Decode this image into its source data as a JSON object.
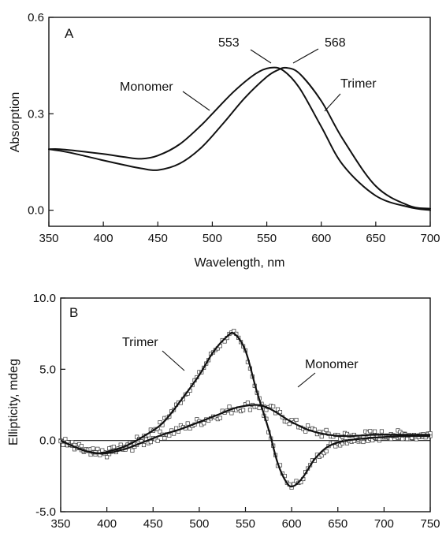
{
  "chart_data": [
    {
      "panel_label": "A",
      "type": "line",
      "xlabel": "Wavelength, nm",
      "ylabel": "Absorption",
      "xlim": [
        350,
        700
      ],
      "ylim": [
        -0.05,
        0.6
      ],
      "xticks": [
        350,
        400,
        450,
        500,
        550,
        600,
        650,
        700
      ],
      "yticks": [
        0.0,
        0.3,
        0.6
      ],
      "ytick_labels": [
        "0.0",
        "0.3",
        "0.6"
      ],
      "series": [
        {
          "name": "Monomer",
          "x": [
            350,
            360,
            375,
            400,
            420,
            435,
            450,
            470,
            490,
            500,
            520,
            540,
            553,
            565,
            580,
            600,
            620,
            650,
            680,
            700
          ],
          "y": [
            0.19,
            0.19,
            0.185,
            0.175,
            0.165,
            0.16,
            0.17,
            0.205,
            0.265,
            0.3,
            0.37,
            0.425,
            0.443,
            0.435,
            0.38,
            0.26,
            0.14,
            0.045,
            0.01,
            0.0
          ]
        },
        {
          "name": "Trimer",
          "x": [
            350,
            360,
            375,
            400,
            420,
            435,
            450,
            470,
            490,
            510,
            530,
            550,
            560,
            568,
            580,
            600,
            620,
            650,
            680,
            700
          ],
          "y": [
            0.19,
            0.185,
            0.175,
            0.155,
            0.14,
            0.13,
            0.125,
            0.145,
            0.195,
            0.27,
            0.35,
            0.415,
            0.436,
            0.443,
            0.425,
            0.34,
            0.22,
            0.075,
            0.015,
            0.005
          ]
        }
      ],
      "annotations": [
        {
          "text": "553",
          "x": 553
        },
        {
          "text": "568",
          "x": 568
        },
        {
          "text": "Monomer",
          "series": "Monomer"
        },
        {
          "text": "Trimer",
          "series": "Trimer"
        }
      ],
      "grid": false
    },
    {
      "panel_label": "B",
      "type": "scatter",
      "xlabel": "",
      "ylabel": "Ellipticity, mdeg",
      "xlim": [
        350,
        750
      ],
      "ylim": [
        -5.0,
        10.0
      ],
      "xticks": [
        350,
        400,
        450,
        500,
        550,
        600,
        650,
        700,
        750
      ],
      "yticks": [
        -5.0,
        0.0,
        5.0,
        10.0
      ],
      "ytick_labels": [
        "-5.0",
        "0.0",
        "5.0",
        "10.0"
      ],
      "zero_line": 0,
      "series": [
        {
          "name": "Trimer",
          "x": [
            350,
            360,
            375,
            390,
            400,
            420,
            440,
            460,
            480,
            500,
            515,
            530,
            538,
            550,
            562,
            575,
            585,
            595,
            602,
            612,
            625,
            640,
            660,
            690,
            720,
            750
          ],
          "y": [
            0.0,
            -0.3,
            -0.7,
            -0.9,
            -0.8,
            -0.4,
            0.3,
            1.2,
            2.8,
            4.6,
            6.2,
            7.3,
            7.5,
            6.3,
            3.5,
            0.8,
            -1.6,
            -3.0,
            -3.2,
            -2.6,
            -1.3,
            -0.4,
            0.0,
            0.2,
            0.3,
            0.3
          ]
        },
        {
          "name": "Monomer",
          "x": [
            350,
            360,
            375,
            390,
            400,
            420,
            440,
            460,
            480,
            500,
            520,
            540,
            560,
            570,
            580,
            600,
            620,
            640,
            660,
            690,
            720,
            750
          ],
          "y": [
            0.0,
            -0.3,
            -0.7,
            -0.9,
            -0.9,
            -0.6,
            -0.1,
            0.4,
            0.8,
            1.3,
            1.8,
            2.3,
            2.5,
            2.4,
            2.1,
            1.3,
            0.7,
            0.4,
            0.3,
            0.4,
            0.4,
            0.4
          ]
        }
      ],
      "annotations": [
        {
          "text": "Trimer",
          "series": "Trimer"
        },
        {
          "text": "Monomer",
          "series": "Monomer"
        }
      ],
      "grid": false
    }
  ]
}
